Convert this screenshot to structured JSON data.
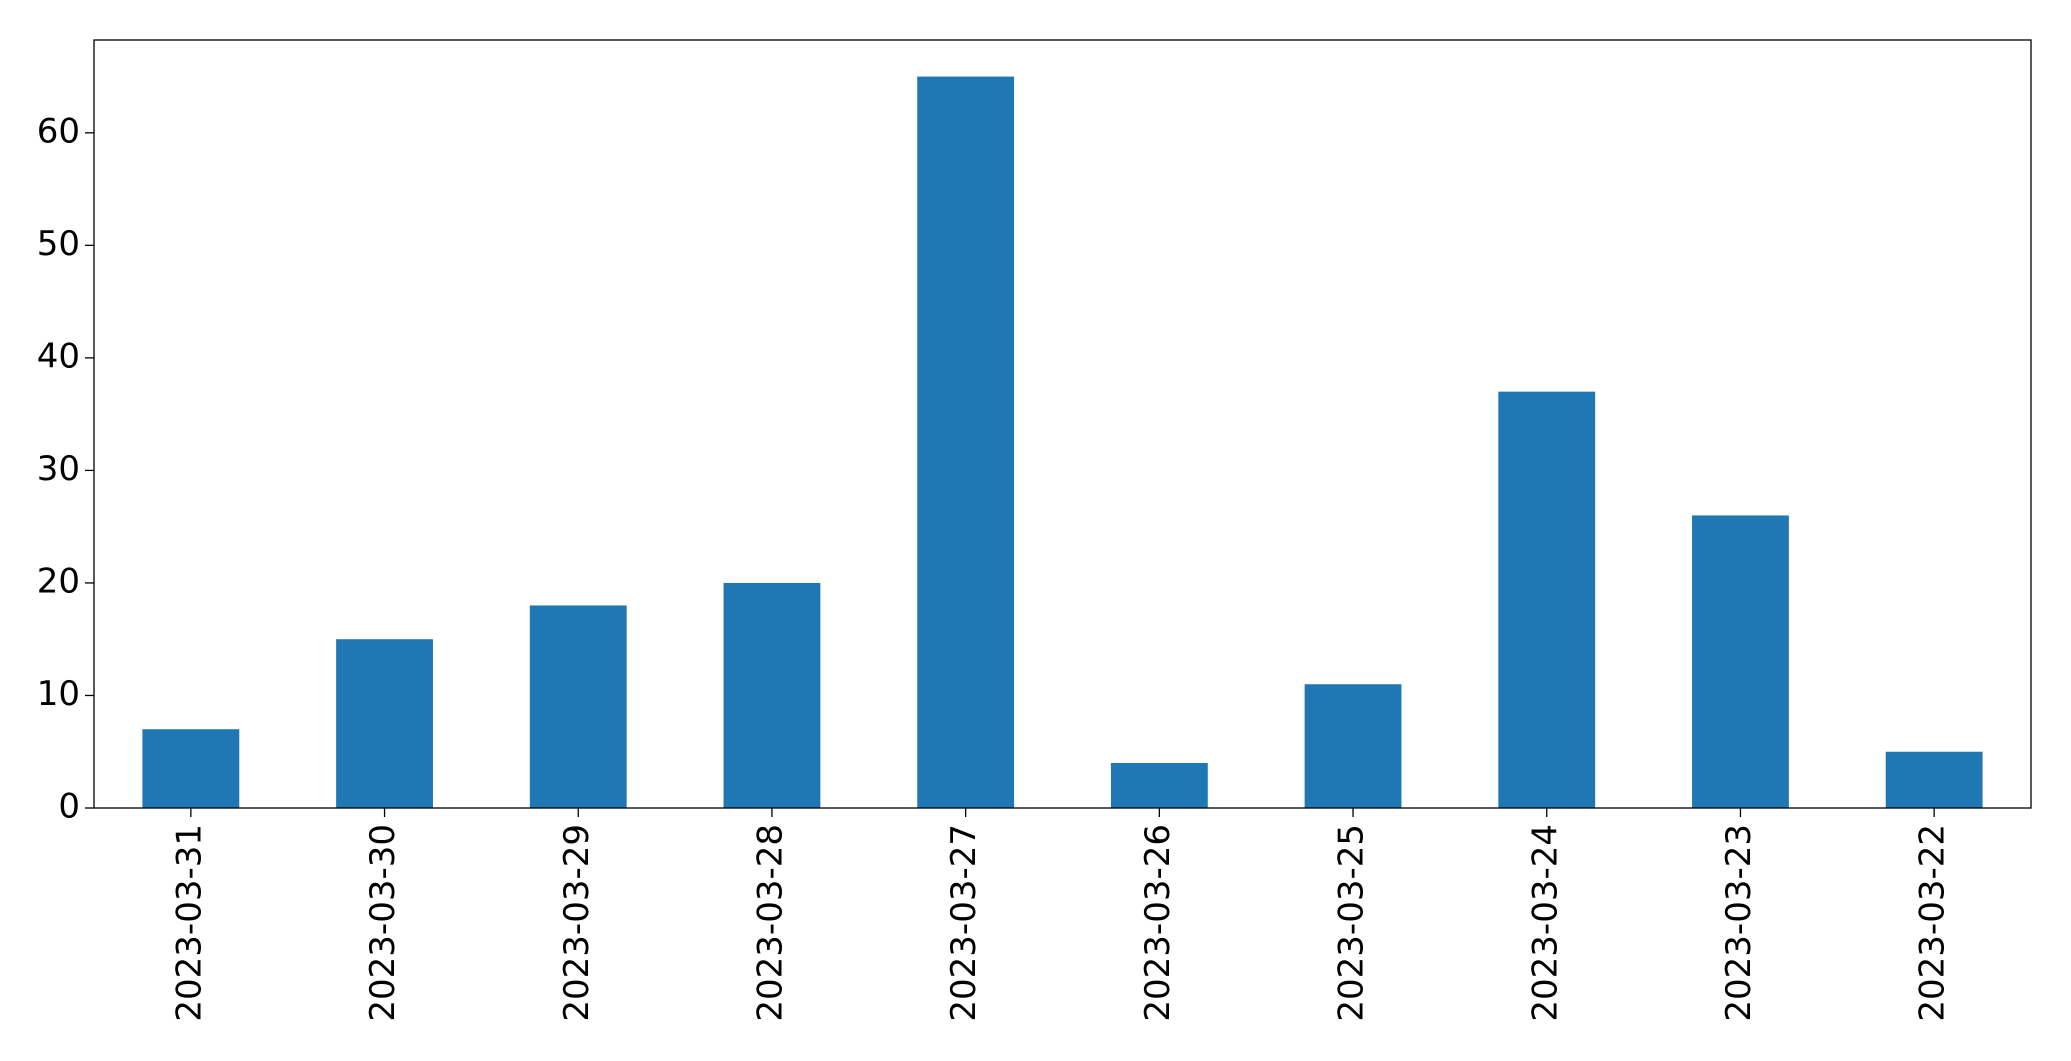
{
  "chart_data": {
    "type": "bar",
    "categories": [
      "2023-03-31",
      "2023-03-30",
      "2023-03-29",
      "2023-03-28",
      "2023-03-27",
      "2023-03-26",
      "2023-03-25",
      "2023-03-24",
      "2023-03-23",
      "2023-03-22"
    ],
    "values": [
      7,
      15,
      18,
      20,
      65,
      4,
      11,
      37,
      26,
      5
    ],
    "color": "#1f77b4",
    "ylim": [
      0,
      68.25
    ],
    "yticks": [
      0,
      10,
      20,
      30,
      40,
      50,
      60
    ],
    "grid": false
  }
}
